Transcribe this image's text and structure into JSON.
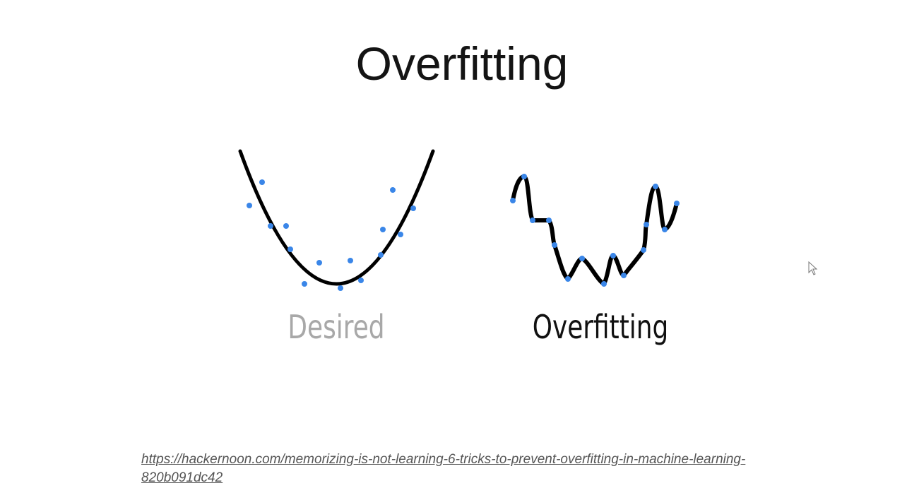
{
  "slide": {
    "title": "Overfitting",
    "captions": {
      "desired": "Desired",
      "overfitting": "Overfitting"
    },
    "source_link": "https://hackernoon.com/memorizing-is-not-learning-6-tricks-to-prevent-overfitting-in-machine-learning-820b091dc42"
  },
  "colors": {
    "curve": "#000000",
    "points": "#3a86e8",
    "desired_caption": "#a8a8a8",
    "overfitting_caption": "#111111"
  },
  "icons": [
    "mouse-pointer-icon"
  ]
}
